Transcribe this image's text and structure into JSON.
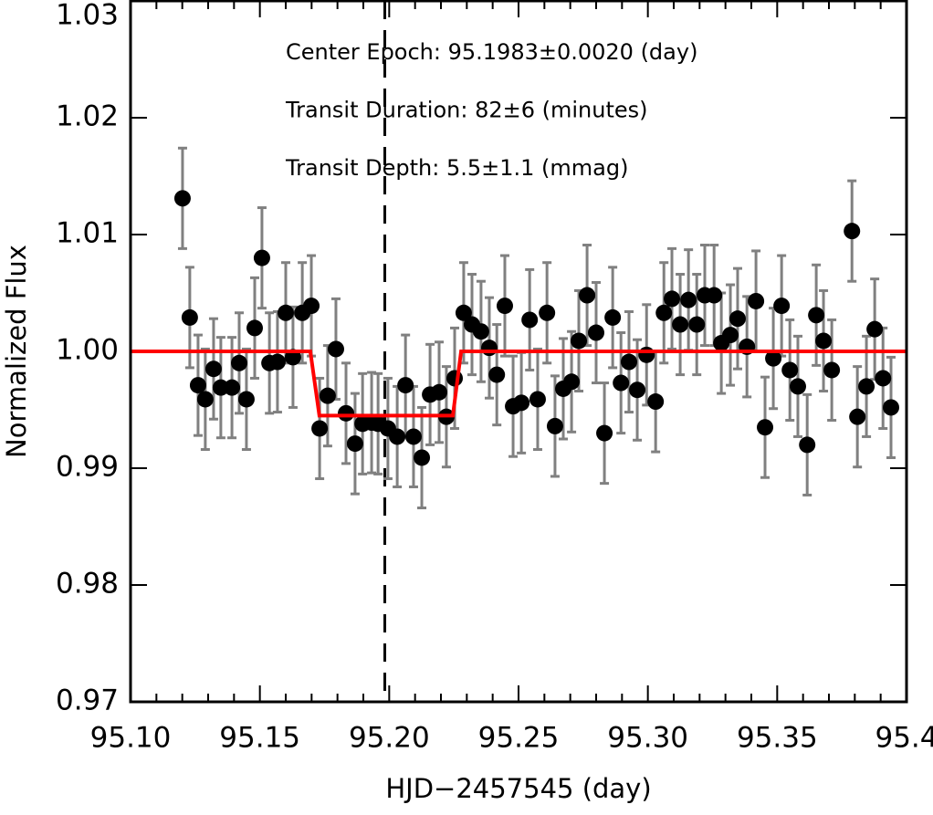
{
  "chart_data": {
    "type": "scatter",
    "xlabel": "HJD−2457545 (day)",
    "ylabel": "Normalized Flux",
    "xlim": [
      95.1,
      95.4
    ],
    "ylim": [
      0.97,
      1.03
    ],
    "xticks": [
      {
        "value": 95.1,
        "label": "95.10"
      },
      95.15,
      {
        "value": 95.2,
        "label": "95.20"
      },
      95.25,
      {
        "value": 95.3,
        "label": "95.30"
      },
      95.35,
      95.4
    ],
    "xminor_ticks": [
      95.11,
      95.12,
      95.13,
      95.14,
      95.16,
      95.17,
      95.18,
      95.19,
      95.21,
      95.22,
      95.23,
      95.24,
      95.26,
      95.27,
      95.28,
      95.29,
      95.31,
      95.32,
      95.33,
      95.34,
      95.36,
      95.37,
      95.38,
      95.39
    ],
    "yticks": [
      0.97,
      0.98,
      0.99,
      {
        "value": 1.0,
        "label": "1.00"
      },
      1.01,
      1.02,
      1.03
    ],
    "annotations": [
      "Center Epoch: 95.1983±0.0020 (day)",
      "Transit Duration: 82±6 (minutes)",
      "Transit Depth: 5.5±1.1 (mmag)"
    ],
    "epoch_line": 95.1983,
    "series": [
      {
        "style": "points",
        "color": "#000000",
        "error_color": "#808080",
        "x": [
          95.1201,
          95.1229,
          95.1261,
          95.1289,
          95.1321,
          95.1349,
          95.1392,
          95.142,
          95.1448,
          95.148,
          95.1508,
          95.1537,
          95.1568,
          95.16,
          95.1628,
          95.1664,
          95.1699,
          95.1731,
          95.1762,
          95.1794,
          95.1833,
          95.1868,
          95.1897,
          95.1932,
          95.1957,
          95.1995,
          95.2031,
          95.2063,
          95.2094,
          95.2126,
          95.2158,
          95.2193,
          95.2221,
          95.2253,
          95.2288,
          95.232,
          95.2355,
          95.2387,
          95.2416,
          95.2447,
          95.2479,
          95.2511,
          95.2543,
          95.2574,
          95.261,
          95.2641,
          95.2673,
          95.2705,
          95.2733,
          95.2765,
          95.28,
          95.2832,
          95.2864,
          95.2896,
          95.2927,
          95.2959,
          95.2995,
          95.303,
          95.3062,
          95.3093,
          95.3125,
          95.3157,
          95.3189,
          95.322,
          95.3256,
          95.3284,
          95.3319,
          95.3347,
          95.3383,
          95.3418,
          95.3453,
          95.3485,
          95.3517,
          95.3549,
          95.358,
          95.3616,
          95.3651,
          95.3679,
          95.3711,
          95.3789,
          95.381,
          95.3845,
          95.3877,
          95.3909,
          95.394
        ],
        "values": [
          1.0131,
          1.0029,
          0.9971,
          0.9959,
          0.9985,
          0.9969,
          0.9969,
          0.999,
          0.9959,
          1.002,
          1.008,
          0.999,
          0.9991,
          1.0033,
          0.9995,
          1.0033,
          1.0039,
          0.9934,
          0.9962,
          1.0002,
          0.9947,
          0.9921,
          0.9938,
          0.9939,
          0.9938,
          0.9934,
          0.9927,
          0.9971,
          0.9927,
          0.9909,
          0.9963,
          0.9965,
          0.9944,
          0.9977,
          1.0033,
          1.0023,
          1.0017,
          1.0003,
          0.998,
          1.0039,
          0.9953,
          0.9956,
          1.0027,
          0.9959,
          1.0033,
          0.9936,
          0.9968,
          0.9974,
          1.0009,
          1.0048,
          1.0016,
          0.993,
          1.0029,
          0.9973,
          0.9991,
          0.9967,
          0.9997,
          0.9957,
          1.0033,
          1.0045,
          1.0023,
          1.0044,
          1.0023,
          1.0048,
          1.0048,
          1.0007,
          1.0014,
          1.0028,
          1.0004,
          1.0043,
          0.9935,
          0.9994,
          1.0039,
          0.9984,
          0.997,
          0.992,
          1.0031,
          1.0009,
          0.9984,
          1.0103,
          0.9944,
          0.997,
          1.0019,
          0.9977,
          0.9952
        ],
        "errors": [
          0.0043,
          0.0043,
          0.0043,
          0.0043,
          0.0043,
          0.0043,
          0.0043,
          0.0043,
          0.0043,
          0.0043,
          0.0043,
          0.0043,
          0.0043,
          0.0043,
          0.0043,
          0.0043,
          0.0043,
          0.0043,
          0.0043,
          0.0043,
          0.0043,
          0.0043,
          0.0043,
          0.0043,
          0.0043,
          0.0043,
          0.0043,
          0.0043,
          0.0043,
          0.0043,
          0.0043,
          0.0043,
          0.0043,
          0.0043,
          0.0043,
          0.0043,
          0.0043,
          0.0043,
          0.0043,
          0.0043,
          0.0043,
          0.0043,
          0.0043,
          0.0043,
          0.0043,
          0.0043,
          0.0043,
          0.0043,
          0.0043,
          0.0043,
          0.0043,
          0.0043,
          0.0043,
          0.0043,
          0.0043,
          0.0043,
          0.0043,
          0.0043,
          0.0043,
          0.0043,
          0.0043,
          0.0043,
          0.0043,
          0.0043,
          0.0043,
          0.0043,
          0.0043,
          0.0043,
          0.0043,
          0.0043,
          0.0043,
          0.0043,
          0.0043,
          0.0043,
          0.0043,
          0.0043,
          0.0043,
          0.0043,
          0.0043,
          0.0043,
          0.0043,
          0.0043,
          0.0043,
          0.0043,
          0.0043
        ]
      },
      {
        "style": "line",
        "color": "#ff0000",
        "x": [
          95.1,
          95.1695,
          95.173,
          95.2246,
          95.2278,
          95.4
        ],
        "values": [
          1.0,
          1.0,
          0.9945,
          0.9945,
          1.0,
          1.0
        ]
      }
    ]
  }
}
